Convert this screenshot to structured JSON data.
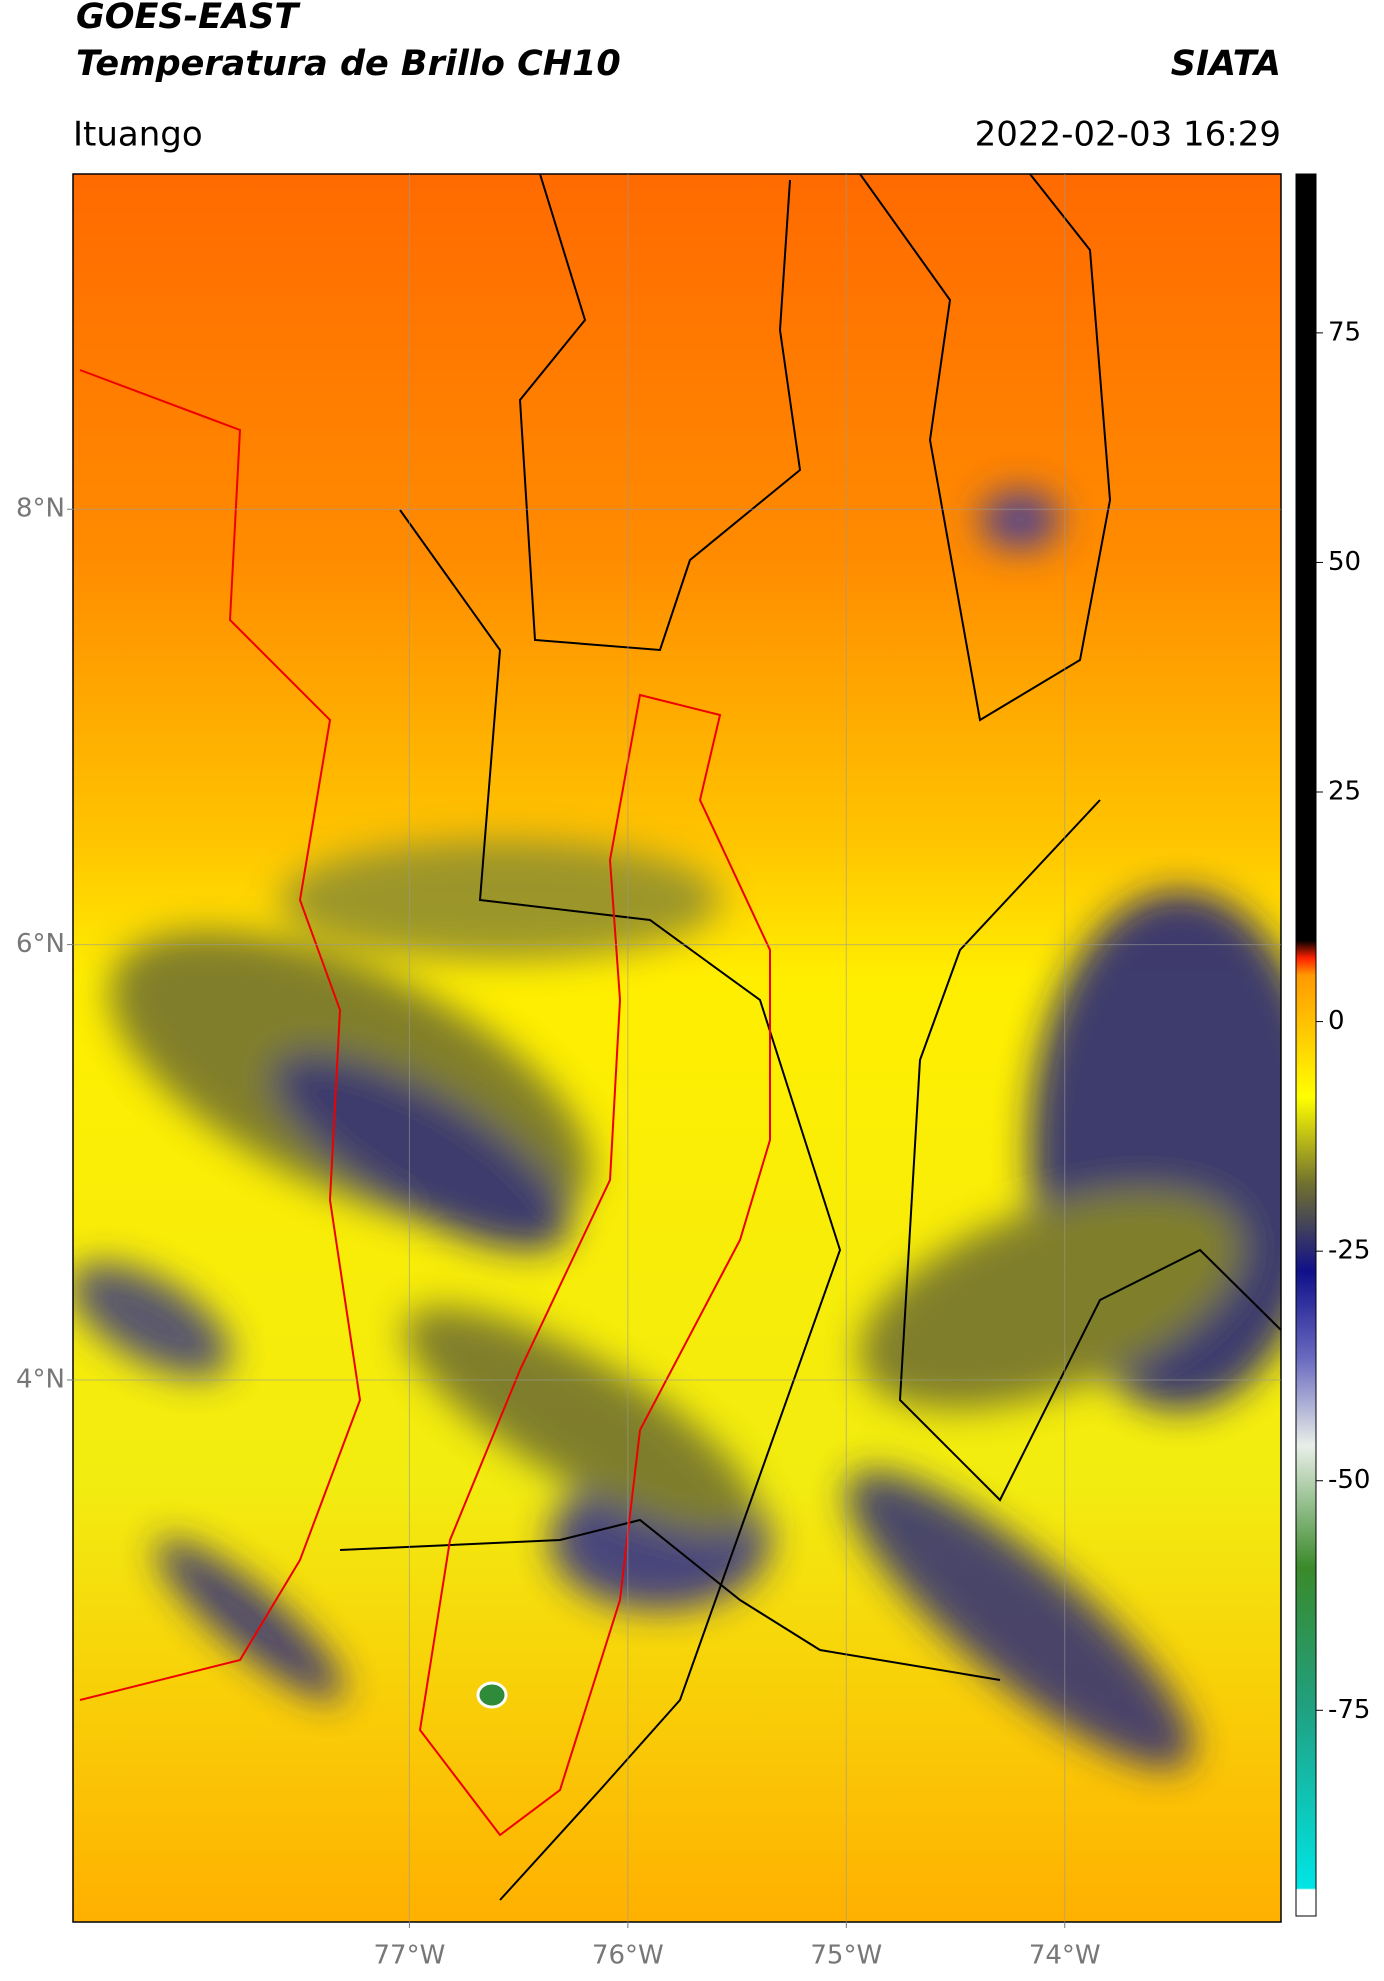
{
  "chart_data": {
    "type": "map",
    "title": "GOES-EAST",
    "subtitle": "Temperatura de Brillo CH10",
    "source": "SIATA",
    "location": "Ituango",
    "timestamp": "2022-02-03 16:29",
    "xlim": [
      -78.54,
      -73.01
    ],
    "ylim": [
      1.51,
      9.54
    ],
    "xticks": [
      {
        "value": -77,
        "label": "77°W"
      },
      {
        "value": -76,
        "label": "76°W"
      },
      {
        "value": -75,
        "label": "75°W"
      },
      {
        "value": -74,
        "label": "74°W"
      }
    ],
    "yticks": [
      {
        "value": 8,
        "label": "8°N"
      },
      {
        "value": 6,
        "label": "6°N"
      },
      {
        "value": 4,
        "label": "4°N"
      }
    ],
    "grid": true,
    "colorbar": {
      "lim": [
        -97.4,
        92.3
      ],
      "ticks": [
        75,
        50,
        25,
        0,
        -25,
        -50,
        -75
      ]
    }
  }
}
